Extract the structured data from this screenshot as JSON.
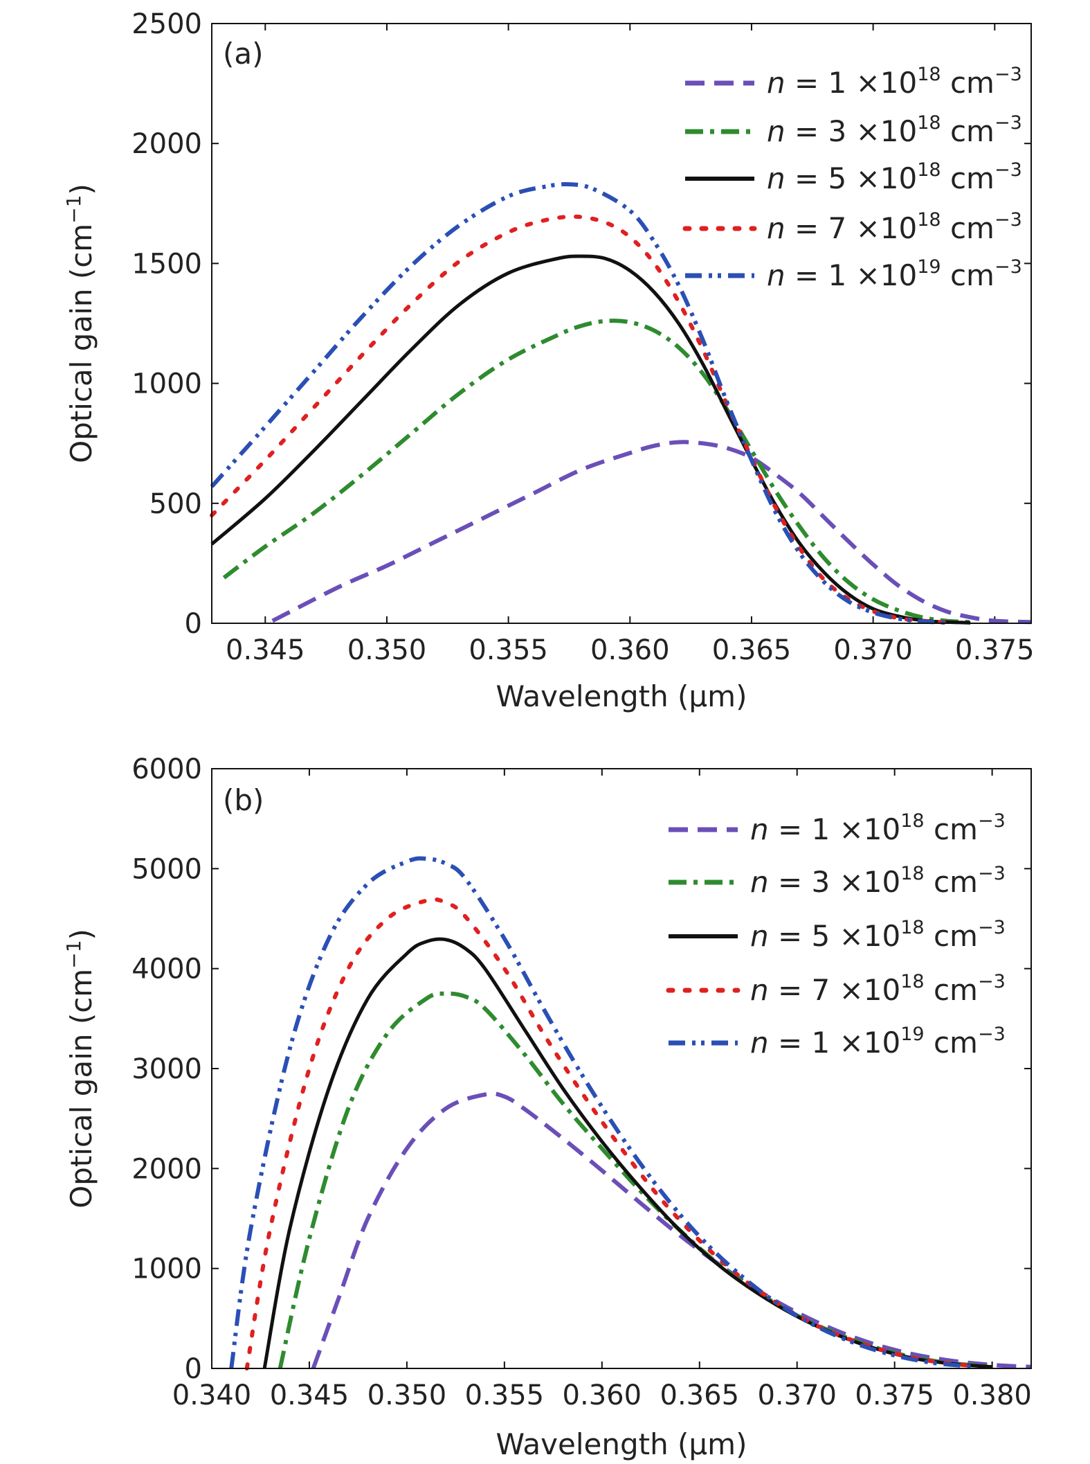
{
  "colors": {
    "purple": "#6a4fb8",
    "green": "#2e8b2e",
    "black": "#111111",
    "red": "#e02020",
    "blue": "#2a4fb5"
  },
  "legend_entries": [
    {
      "prefix": "n",
      "mid": " = 1 ×10",
      "sup": "18",
      "unit": " cm",
      "unit_sup": "−3"
    },
    {
      "prefix": "n",
      "mid": " = 3 ×10",
      "sup": "18",
      "unit": " cm",
      "unit_sup": "−3"
    },
    {
      "prefix": "n",
      "mid": " = 5 ×10",
      "sup": "18",
      "unit": " cm",
      "unit_sup": "−3"
    },
    {
      "prefix": "n",
      "mid": " = 7 ×10",
      "sup": "18",
      "unit": " cm",
      "unit_sup": "−3"
    },
    {
      "prefix": "n",
      "mid": " = 1 ×10",
      "sup": "19",
      "unit": " cm",
      "unit_sup": "−3"
    }
  ],
  "chart_data": [
    {
      "type": "line",
      "panel_label": "(a)",
      "xlabel": "Wavelength (μm)",
      "ylabel_main": "Optical gain (cm",
      "ylabel_sup": "−1",
      "ylabel_close": ")",
      "xlim": [
        0.3428,
        0.3765
      ],
      "ylim": [
        0,
        2500
      ],
      "xticks": [
        0.345,
        0.35,
        0.355,
        0.36,
        0.365,
        0.37,
        0.375
      ],
      "xtick_labels": [
        "0.345",
        "0.350",
        "0.355",
        "0.360",
        "0.365",
        "0.370",
        "0.375"
      ],
      "yticks": [
        0,
        500,
        1000,
        1500,
        2000,
        2500
      ],
      "ytick_labels": [
        "0",
        "500",
        "1000",
        "1500",
        "2000",
        "2500"
      ],
      "legend_position": "top-right",
      "series": [
        {
          "color": "purple",
          "style": "dash",
          "x": [
            0.3453,
            0.348,
            0.35,
            0.352,
            0.354,
            0.356,
            0.358,
            0.36,
            0.361,
            0.362,
            0.363,
            0.364,
            0.365,
            0.366,
            0.367,
            0.368,
            0.369,
            0.37,
            0.371,
            0.372,
            0.373,
            0.374,
            0.375,
            0.3765
          ],
          "y": [
            10,
            150,
            240,
            340,
            440,
            540,
            640,
            710,
            740,
            755,
            750,
            730,
            690,
            620,
            540,
            440,
            340,
            245,
            160,
            95,
            50,
            25,
            10,
            5
          ]
        },
        {
          "color": "green",
          "style": "dashdot",
          "x": [
            0.3433,
            0.345,
            0.347,
            0.349,
            0.351,
            0.353,
            0.355,
            0.357,
            0.358,
            0.359,
            0.36,
            0.361,
            0.362,
            0.363,
            0.364,
            0.365,
            0.366,
            0.367,
            0.368,
            0.369,
            0.37,
            0.371,
            0.372,
            0.373,
            0.374
          ],
          "y": [
            190,
            320,
            460,
            620,
            790,
            960,
            1100,
            1200,
            1240,
            1260,
            1255,
            1220,
            1150,
            1040,
            890,
            720,
            550,
            400,
            270,
            170,
            100,
            55,
            25,
            10,
            5
          ]
        },
        {
          "color": "black",
          "style": "solid",
          "x": [
            0.3428,
            0.345,
            0.347,
            0.349,
            0.351,
            0.353,
            0.355,
            0.357,
            0.358,
            0.359,
            0.36,
            0.361,
            0.362,
            0.363,
            0.364,
            0.365,
            0.366,
            0.367,
            0.368,
            0.369,
            0.37,
            0.371,
            0.372,
            0.373,
            0.374
          ],
          "y": [
            330,
            520,
            720,
            930,
            1140,
            1330,
            1460,
            1520,
            1530,
            1520,
            1470,
            1380,
            1250,
            1080,
            880,
            680,
            490,
            330,
            210,
            120,
            60,
            30,
            12,
            5,
            2
          ]
        },
        {
          "color": "red",
          "style": "dot",
          "x": [
            0.3428,
            0.345,
            0.347,
            0.349,
            0.351,
            0.353,
            0.355,
            0.3565,
            0.3578,
            0.359,
            0.36,
            0.361,
            0.362,
            0.363,
            0.364,
            0.365,
            0.366,
            0.367,
            0.368,
            0.369,
            0.37,
            0.371,
            0.372,
            0.373
          ],
          "y": [
            450,
            680,
            900,
            1120,
            1330,
            1510,
            1630,
            1680,
            1695,
            1670,
            1610,
            1500,
            1340,
            1140,
            910,
            690,
            480,
            310,
            180,
            100,
            50,
            22,
            10,
            4
          ]
        },
        {
          "color": "blue",
          "style": "dashdotdot",
          "x": [
            0.3428,
            0.345,
            0.347,
            0.349,
            0.351,
            0.353,
            0.355,
            0.3565,
            0.3575,
            0.3585,
            0.36,
            0.361,
            0.362,
            0.363,
            0.364,
            0.365,
            0.366,
            0.367,
            0.368,
            0.369,
            0.37,
            0.371,
            0.372,
            0.373
          ],
          "y": [
            570,
            820,
            1050,
            1280,
            1490,
            1660,
            1780,
            1820,
            1830,
            1810,
            1720,
            1590,
            1410,
            1180,
            920,
            680,
            460,
            290,
            170,
            90,
            45,
            20,
            8,
            3
          ]
        }
      ]
    },
    {
      "type": "line",
      "panel_label": "(b)",
      "xlabel": "Wavelength (μm)",
      "ylabel_main": "Optical gain (cm",
      "ylabel_sup": "−1",
      "ylabel_close": ")",
      "xlim": [
        0.34,
        0.382
      ],
      "ylim": [
        0,
        6000
      ],
      "xticks": [
        0.34,
        0.345,
        0.35,
        0.355,
        0.36,
        0.365,
        0.37,
        0.375,
        0.38
      ],
      "xtick_labels": [
        "0.340",
        "0.345",
        "0.350",
        "0.355",
        "0.360",
        "0.365",
        "0.370",
        "0.375",
        "0.380"
      ],
      "yticks": [
        0,
        1000,
        2000,
        3000,
        4000,
        5000,
        6000
      ],
      "ytick_labels": [
        "0",
        "1000",
        "2000",
        "3000",
        "4000",
        "5000",
        "6000"
      ],
      "legend_position": "top-right",
      "series": [
        {
          "color": "purple",
          "style": "dash",
          "x": [
            0.3452,
            0.3465,
            0.348,
            0.35,
            0.352,
            0.354,
            0.355,
            0.356,
            0.358,
            0.36,
            0.362,
            0.364,
            0.366,
            0.368,
            0.37,
            0.372,
            0.374,
            0.376,
            0.378,
            0.38,
            0.382
          ],
          "y": [
            0,
            700,
            1500,
            2200,
            2600,
            2740,
            2720,
            2600,
            2300,
            1980,
            1650,
            1330,
            1040,
            780,
            560,
            380,
            240,
            140,
            75,
            35,
            15
          ]
        },
        {
          "color": "green",
          "style": "dashdot",
          "x": [
            0.3435,
            0.345,
            0.347,
            0.349,
            0.351,
            0.352,
            0.353,
            0.354,
            0.356,
            0.358,
            0.36,
            0.362,
            0.364,
            0.366,
            0.368,
            0.37,
            0.372,
            0.374,
            0.376,
            0.378,
            0.38
          ],
          "y": [
            0,
            1300,
            2600,
            3350,
            3700,
            3750,
            3720,
            3600,
            3150,
            2650,
            2200,
            1770,
            1380,
            1040,
            760,
            530,
            350,
            210,
            110,
            50,
            20
          ]
        },
        {
          "color": "black",
          "style": "solid",
          "x": [
            0.3427,
            0.344,
            0.346,
            0.348,
            0.35,
            0.351,
            0.352,
            0.353,
            0.354,
            0.356,
            0.358,
            0.36,
            0.362,
            0.364,
            0.366,
            0.368,
            0.37,
            0.372,
            0.374,
            0.376,
            0.378,
            0.38
          ],
          "y": [
            0,
            1400,
            2800,
            3700,
            4150,
            4270,
            4290,
            4200,
            4000,
            3400,
            2800,
            2270,
            1800,
            1380,
            1030,
            750,
            520,
            340,
            200,
            100,
            45,
            15
          ]
        },
        {
          "color": "red",
          "style": "dot",
          "x": [
            0.3418,
            0.343,
            0.345,
            0.347,
            0.349,
            0.351,
            0.352,
            0.353,
            0.355,
            0.357,
            0.359,
            0.361,
            0.363,
            0.365,
            0.367,
            0.369,
            0.371,
            0.373,
            0.375,
            0.377,
            0.379
          ],
          "y": [
            0,
            1400,
            3000,
            4000,
            4500,
            4680,
            4660,
            4520,
            4000,
            3350,
            2750,
            2200,
            1700,
            1280,
            930,
            650,
            430,
            270,
            150,
            70,
            25
          ]
        },
        {
          "color": "blue",
          "style": "dashdotdot",
          "x": [
            0.341,
            0.342,
            0.344,
            0.346,
            0.348,
            0.35,
            0.351,
            0.352,
            0.353,
            0.355,
            0.357,
            0.359,
            0.361,
            0.363,
            0.365,
            0.367,
            0.369,
            0.371,
            0.373,
            0.375,
            0.377,
            0.379
          ],
          "y": [
            0,
            1400,
            3200,
            4300,
            4850,
            5070,
            5100,
            5050,
            4900,
            4300,
            3600,
            2930,
            2320,
            1780,
            1320,
            950,
            650,
            420,
            250,
            130,
            55,
            20
          ]
        }
      ]
    }
  ]
}
